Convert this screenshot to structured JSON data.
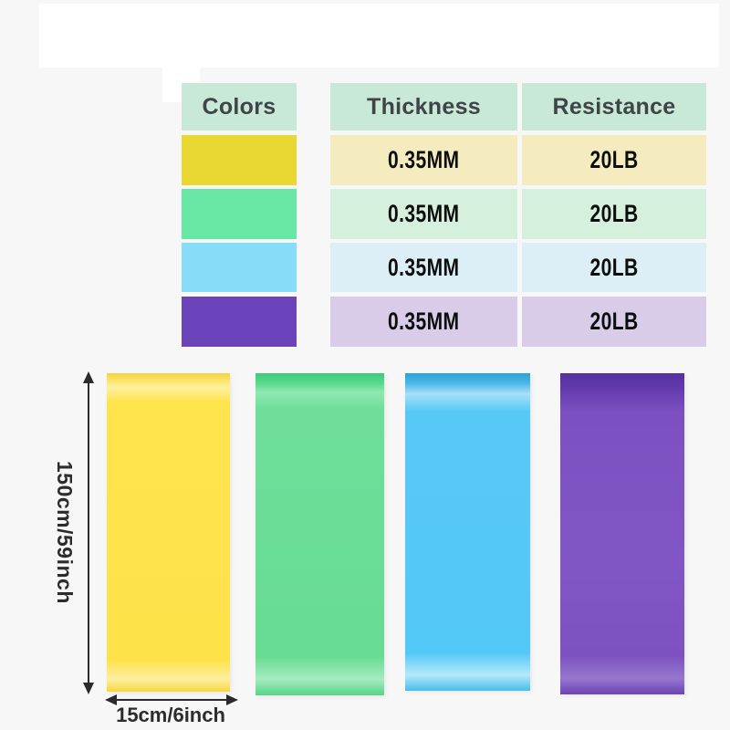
{
  "title": "resistance-band-spec-infographic",
  "colors": {
    "background": "#f7f7f7",
    "panel_white": "#ffffff",
    "arrow": "#2b2b2b",
    "header_text": "#3e4447",
    "value_text": "#0d0d0d",
    "header_bg": "#c9e9d8"
  },
  "table": {
    "columns": [
      {
        "label": "Colors"
      },
      {
        "label": "Thickness"
      },
      {
        "label": "Resistance"
      }
    ],
    "rows": [
      {
        "name": "yellow",
        "swatch_color": "#e9d732",
        "row_tint": "#f4ebbe",
        "thickness": "0.35MM",
        "resistance": "20LB"
      },
      {
        "name": "green",
        "swatch_color": "#68e7a4",
        "row_tint": "#d5f0dd",
        "thickness": "0.35MM",
        "resistance": "20LB"
      },
      {
        "name": "blue",
        "swatch_color": "#87dcf8",
        "row_tint": "#dceef6",
        "thickness": "0.35MM",
        "resistance": "20LB"
      },
      {
        "name": "purple",
        "swatch_color": "#6b44bc",
        "row_tint": "#d8cce9",
        "thickness": "0.35MM",
        "resistance": "20LB"
      }
    ]
  },
  "bands": {
    "length_label": "150cm/59inch",
    "width_label": "15cm/6inch",
    "items": [
      {
        "name": "yellow",
        "color": "#ffe44e",
        "gradient": "linear-gradient(180deg, #f4d339 0%, #fce570 2.5%, #fff09e 4.5%, #ffe44e 9%, #fee24a 90%, #fdefa0 96%, #f6d840 100%)"
      },
      {
        "name": "green",
        "color": "#6cdd96",
        "gradient": "linear-gradient(180deg, #3fca7c 0%, #57d98c 3%, #8fe9b1 6%, #6ede9a 11%, #68dc93 88%, #a5ecc0 95%, #57d486 100%)"
      },
      {
        "name": "blue",
        "color": "#55c9f7",
        "gradient": "linear-gradient(180deg, #2da2d6 0%, #47b7e6 3%, #a6e0f8 6.5%, #57c9f6 12%, #52c8f7 88%, #b5e9fb 95%, #46bdeb 100%)"
      },
      {
        "name": "purple",
        "color": "#7e53c2",
        "gradient": "linear-gradient(180deg, #55309f 0%, #6038ab 4%, #7c50c0 12%, #8156c4 60%, #7d52c0 88%, #9677cf 95%, #6b43b4 100%)"
      }
    ]
  }
}
